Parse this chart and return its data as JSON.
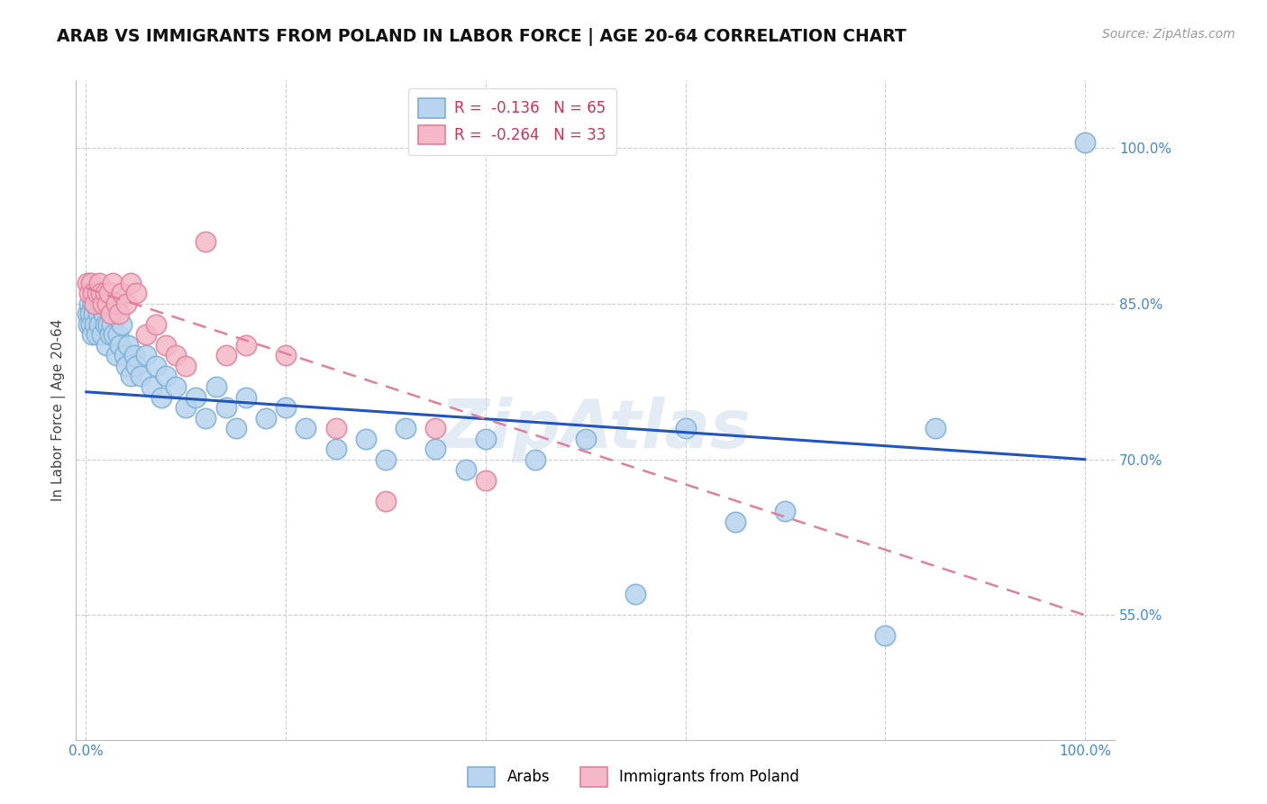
{
  "title": "ARAB VS IMMIGRANTS FROM POLAND IN LABOR FORCE | AGE 20-64 CORRELATION CHART",
  "source": "Source: ZipAtlas.com",
  "ylabel": "In Labor Force | Age 20-64",
  "arab_color": "#b8d4ee",
  "arab_edge_color": "#7bafd4",
  "poland_color": "#f4b8c8",
  "poland_edge_color": "#e0809a",
  "arab_line_color": "#2255bb",
  "poland_line_color": "#e0809a",
  "legend_r_arab": "-0.136",
  "legend_n_arab": "65",
  "legend_r_poland": "-0.264",
  "legend_n_poland": "33",
  "watermark": "ZipAtlas",
  "title_fontsize": 13.5,
  "axis_label_fontsize": 11,
  "tick_fontsize": 11,
  "legend_fontsize": 12,
  "source_fontsize": 10,
  "arab_x": [
    0.001,
    0.002,
    0.003,
    0.004,
    0.005,
    0.006,
    0.007,
    0.008,
    0.009,
    0.01,
    0.012,
    0.013,
    0.015,
    0.016,
    0.018,
    0.019,
    0.02,
    0.022,
    0.024,
    0.025,
    0.026,
    0.028,
    0.03,
    0.032,
    0.034,
    0.036,
    0.038,
    0.04,
    0.042,
    0.045,
    0.048,
    0.05,
    0.055,
    0.06,
    0.065,
    0.07,
    0.075,
    0.08,
    0.09,
    0.1,
    0.11,
    0.12,
    0.13,
    0.14,
    0.15,
    0.16,
    0.18,
    0.2,
    0.22,
    0.25,
    0.28,
    0.3,
    0.32,
    0.35,
    0.38,
    0.4,
    0.45,
    0.5,
    0.55,
    0.6,
    0.65,
    0.7,
    0.8,
    0.85,
    1.0
  ],
  "arab_y": [
    0.84,
    0.83,
    0.85,
    0.84,
    0.83,
    0.82,
    0.85,
    0.84,
    0.83,
    0.82,
    0.84,
    0.83,
    0.85,
    0.82,
    0.84,
    0.83,
    0.81,
    0.83,
    0.82,
    0.84,
    0.83,
    0.82,
    0.8,
    0.82,
    0.81,
    0.83,
    0.8,
    0.79,
    0.81,
    0.78,
    0.8,
    0.79,
    0.78,
    0.8,
    0.77,
    0.79,
    0.76,
    0.78,
    0.77,
    0.75,
    0.76,
    0.74,
    0.77,
    0.75,
    0.73,
    0.76,
    0.74,
    0.75,
    0.73,
    0.71,
    0.72,
    0.7,
    0.73,
    0.71,
    0.69,
    0.72,
    0.7,
    0.72,
    0.57,
    0.73,
    0.64,
    0.65,
    0.53,
    0.73,
    1.005
  ],
  "poland_x": [
    0.001,
    0.003,
    0.005,
    0.007,
    0.009,
    0.011,
    0.013,
    0.015,
    0.017,
    0.019,
    0.021,
    0.023,
    0.025,
    0.027,
    0.03,
    0.033,
    0.036,
    0.04,
    0.045,
    0.05,
    0.06,
    0.07,
    0.08,
    0.09,
    0.1,
    0.12,
    0.14,
    0.16,
    0.2,
    0.25,
    0.3,
    0.35,
    0.4
  ],
  "poland_y": [
    0.87,
    0.86,
    0.87,
    0.86,
    0.85,
    0.86,
    0.87,
    0.86,
    0.85,
    0.86,
    0.85,
    0.86,
    0.84,
    0.87,
    0.85,
    0.84,
    0.86,
    0.85,
    0.87,
    0.86,
    0.82,
    0.83,
    0.81,
    0.8,
    0.79,
    0.91,
    0.8,
    0.81,
    0.8,
    0.73,
    0.66,
    0.73,
    0.68
  ],
  "ytick_positions": [
    0.55,
    0.7,
    0.85,
    1.0
  ],
  "ytick_labels": [
    "55.0%",
    "70.0%",
    "85.0%",
    "100.0%"
  ],
  "xtick_positions": [
    0.0,
    0.2,
    0.4,
    0.6,
    0.8,
    1.0
  ],
  "xlim": [
    -0.01,
    1.03
  ],
  "ylim": [
    0.43,
    1.065
  ]
}
